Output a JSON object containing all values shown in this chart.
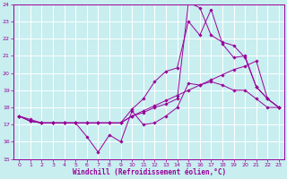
{
  "xlabel": "Windchill (Refroidissement éolien,°C)",
  "background_color": "#c8eef0",
  "grid_color": "#aadddd",
  "line_color": "#990099",
  "xlim": [
    -0.5,
    23.5
  ],
  "ylim": [
    15,
    24
  ],
  "yticks": [
    15,
    16,
    17,
    18,
    19,
    20,
    21,
    22,
    23,
    24
  ],
  "xticks": [
    0,
    1,
    2,
    3,
    4,
    5,
    6,
    7,
    8,
    9,
    10,
    11,
    12,
    13,
    14,
    15,
    16,
    17,
    18,
    19,
    20,
    21,
    22,
    23
  ],
  "series": [
    {
      "x": [
        0,
        1,
        2,
        3,
        4,
        5,
        6,
        7,
        8,
        9,
        10,
        11,
        12,
        13,
        14,
        15,
        16,
        17,
        18,
        19,
        20,
        21,
        22,
        23
      ],
      "y": [
        17.5,
        17.2,
        17.1,
        17.1,
        17.1,
        17.1,
        16.3,
        15.4,
        16.4,
        16.0,
        17.8,
        17.0,
        17.1,
        17.5,
        18.0,
        19.4,
        19.3,
        19.5,
        19.3,
        19.0,
        19.0,
        18.5,
        18.0,
        18.0
      ]
    },
    {
      "x": [
        0,
        1,
        2,
        3,
        4,
        5,
        6,
        7,
        8,
        9,
        10,
        11,
        12,
        13,
        14,
        15,
        16,
        17,
        18,
        19,
        20,
        21,
        22,
        23
      ],
      "y": [
        17.5,
        17.3,
        17.1,
        17.1,
        17.1,
        17.1,
        17.1,
        17.1,
        17.1,
        17.1,
        17.5,
        17.8,
        18.1,
        18.4,
        18.7,
        19.0,
        19.3,
        19.6,
        19.9,
        20.2,
        20.4,
        20.7,
        18.5,
        18.0
      ]
    },
    {
      "x": [
        0,
        1,
        2,
        3,
        4,
        5,
        6,
        7,
        8,
        9,
        10,
        11,
        12,
        13,
        14,
        15,
        16,
        17,
        18,
        19,
        20,
        21,
        22,
        23
      ],
      "y": [
        17.5,
        17.2,
        17.1,
        17.1,
        17.1,
        17.1,
        17.1,
        17.1,
        17.1,
        17.1,
        17.9,
        18.5,
        19.5,
        20.1,
        20.3,
        23.0,
        22.2,
        23.7,
        21.7,
        20.9,
        21.0,
        19.2,
        18.5,
        18.0
      ]
    },
    {
      "x": [
        0,
        1,
        2,
        3,
        4,
        5,
        6,
        7,
        8,
        9,
        10,
        11,
        12,
        13,
        14,
        15,
        16,
        17,
        18,
        19,
        20,
        21,
        22,
        23
      ],
      "y": [
        17.5,
        17.2,
        17.1,
        17.1,
        17.1,
        17.1,
        17.1,
        17.1,
        17.1,
        17.1,
        17.5,
        17.7,
        18.0,
        18.2,
        18.5,
        24.1,
        23.8,
        22.2,
        21.8,
        21.6,
        20.9,
        19.2,
        18.5,
        18.0
      ]
    }
  ]
}
